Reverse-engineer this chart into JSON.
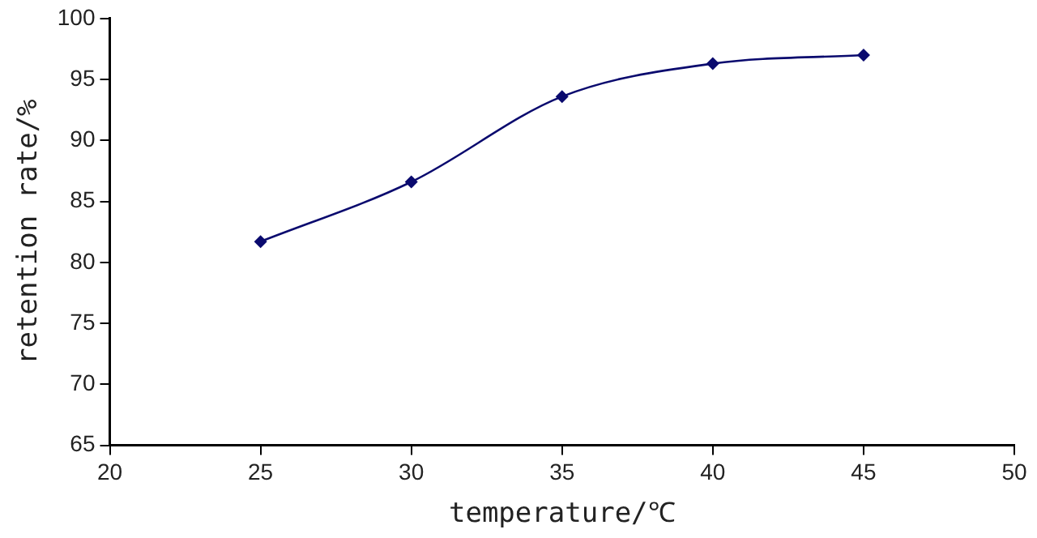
{
  "chart_data": {
    "type": "line",
    "xlabel": "temperature/℃",
    "ylabel": "retention rate/%",
    "x": [
      25,
      30,
      35,
      40,
      45
    ],
    "series": [
      {
        "color": "#0a0a6e",
        "values": [
          81.7,
          86.6,
          93.6,
          96.3,
          97.0
        ]
      }
    ],
    "xlim": [
      20,
      50
    ],
    "xticks": [
      20,
      25,
      30,
      35,
      40,
      45,
      50
    ],
    "ylim": [
      65,
      100
    ],
    "yticks": [
      65,
      70,
      75,
      80,
      85,
      90,
      95,
      100
    ],
    "grid": false,
    "legend": false,
    "marker": "diamond",
    "line_style": "solid"
  }
}
